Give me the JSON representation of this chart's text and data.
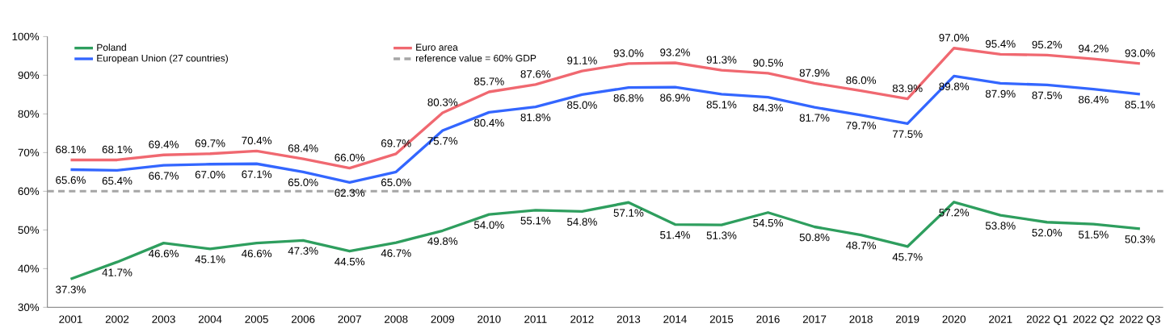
{
  "chart_data": {
    "type": "line",
    "categories": [
      "2001",
      "2002",
      "2003",
      "2004",
      "2005",
      "2006",
      "2007",
      "2008",
      "2009",
      "2010",
      "2011",
      "2012",
      "2013",
      "2014",
      "2015",
      "2016",
      "2017",
      "2018",
      "2019",
      "2020",
      "2021",
      "2022 Q1",
      "2022 Q2",
      "2022 Q3"
    ],
    "series": [
      {
        "name": "Poland",
        "color": "#2e9e5e",
        "values": [
          37.3,
          41.7,
          46.6,
          45.1,
          46.6,
          47.3,
          44.5,
          46.7,
          49.8,
          54.0,
          55.1,
          54.8,
          57.1,
          51.4,
          51.3,
          54.5,
          50.8,
          48.7,
          45.7,
          57.2,
          53.8,
          52.0,
          51.5,
          50.3
        ],
        "value_labels": [
          "37.3%",
          "41.7%",
          "46.6%",
          "45.1%",
          "46.6%",
          "47.3%",
          "44.5%",
          "46.7%",
          "49.8%",
          "54.0%",
          "55.1%",
          "54.8%",
          "57.1%",
          "51.4%",
          "51.3%",
          "54.5%",
          "50.8%",
          "48.7%",
          "45.7%",
          "57.2%",
          "53.8%",
          "52.0%",
          "51.5%",
          "50.3%"
        ]
      },
      {
        "name": "European Union (27 countries)",
        "color": "#3366ff",
        "values": [
          65.6,
          65.4,
          66.7,
          67.0,
          67.1,
          65.0,
          62.3,
          65.0,
          75.7,
          80.4,
          81.8,
          85.0,
          86.8,
          86.9,
          85.1,
          84.3,
          81.7,
          79.7,
          77.5,
          89.8,
          87.9,
          87.5,
          86.4,
          85.1
        ],
        "value_labels": [
          "65.6%",
          "65.4%",
          "66.7%",
          "67.0%",
          "67.1%",
          "65.0%",
          "62.3%",
          "65.0%",
          "75.7%",
          "80.4%",
          "81.8%",
          "85.0%",
          "86.8%",
          "86.9%",
          "85.1%",
          "84.3%",
          "81.7%",
          "79.7%",
          "77.5%",
          "89.8%",
          "87.9%",
          "87.5%",
          "86.4%",
          "85.1%"
        ]
      },
      {
        "name": "Euro area",
        "color": "#f06870",
        "values": [
          68.1,
          68.1,
          69.4,
          69.7,
          70.4,
          68.4,
          66.0,
          69.7,
          80.3,
          85.7,
          87.6,
          91.1,
          93.0,
          93.2,
          91.3,
          90.5,
          87.9,
          86.0,
          83.9,
          97.0,
          95.4,
          95.2,
          94.2,
          93.0
        ],
        "value_labels": [
          "68.1%",
          "68.1%",
          "69.4%",
          "69.7%",
          "70.4%",
          "68.4%",
          "66.0%",
          "69.7%",
          "80.3%",
          "85.7%",
          "87.6%",
          "91.1%",
          "93.0%",
          "93.2%",
          "91.3%",
          "90.5%",
          "87.9%",
          "86.0%",
          "83.9%",
          "97.0%",
          "95.4%",
          "95.2%",
          "94.2%",
          "93.0%"
        ]
      }
    ],
    "ref_lines": [
      {
        "axis": "y",
        "value": 60,
        "label": "reference value = 60% GDP",
        "color": "#a6a6a6",
        "line_style": "dashed"
      }
    ],
    "ylim": [
      30,
      100
    ],
    "yticks": [
      {
        "value": 30,
        "label": "30%"
      },
      {
        "value": 40,
        "label": "40%"
      },
      {
        "value": 50,
        "label": "50%"
      },
      {
        "value": 60,
        "label": "60%"
      },
      {
        "value": 70,
        "label": "70%"
      },
      {
        "value": 80,
        "label": "80%"
      },
      {
        "value": 90,
        "label": "90%"
      },
      {
        "value": 100,
        "label": "100%"
      }
    ],
    "grid": false,
    "legend": "top left",
    "marker": "none",
    "line_style": "solid"
  }
}
